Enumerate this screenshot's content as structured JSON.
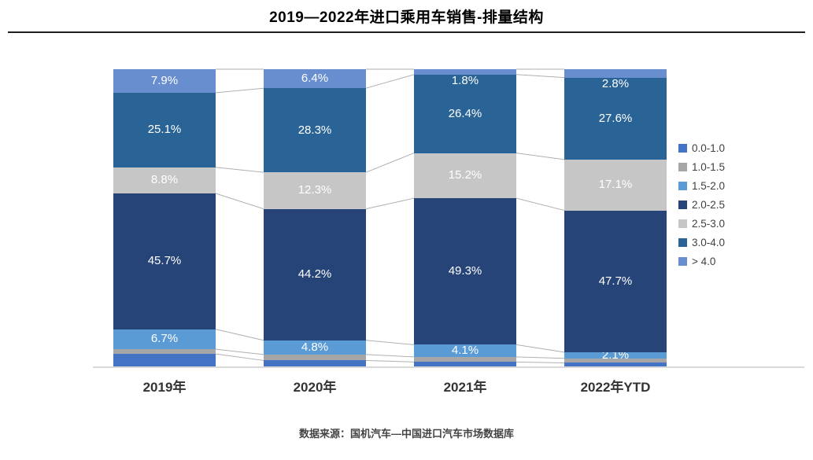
{
  "header": {
    "title": "2019—2022年进口乘用车销售-排量结构"
  },
  "footer": {
    "source": "数据来源：国机汽车—中国进口汽车市场数据库"
  },
  "chart_data": {
    "type": "bar",
    "subtype": "stacked-100-percent",
    "title": "2019—2022年进口乘用车销售-排量结构",
    "xlabel": "",
    "ylabel": "",
    "ylim": [
      0,
      100
    ],
    "grid": false,
    "connector_lines": true,
    "legend_position": "right",
    "categories": [
      "2019年",
      "2020年",
      "2021年",
      "2022年YTD"
    ],
    "series": [
      {
        "name": "0.0-1.0",
        "color": "#4472C4",
        "values": [
          4.2,
          2.0,
          1.5,
          1.2
        ],
        "labels": [
          "",
          "",
          "",
          ""
        ],
        "estimated": true
      },
      {
        "name": "1.0-1.5",
        "color": "#A6A6A6",
        "values": [
          1.6,
          2.0,
          1.7,
          1.5
        ],
        "labels": [
          "",
          "",
          "",
          ""
        ],
        "estimated": true
      },
      {
        "name": "1.5-2.0",
        "color": "#5B9BD5",
        "values": [
          6.7,
          4.8,
          4.1,
          2.1
        ],
        "labels": [
          "6.7%",
          "4.8%",
          "4.1%",
          "2.1%"
        ]
      },
      {
        "name": "2.0-2.5",
        "color": "#264478",
        "values": [
          45.7,
          44.2,
          49.3,
          47.7
        ],
        "labels": [
          "45.7%",
          "44.2%",
          "49.3%",
          "47.7%"
        ]
      },
      {
        "name": "2.5-3.0",
        "color": "#C6C6C6",
        "values": [
          8.8,
          12.3,
          15.2,
          17.1
        ],
        "labels": [
          "8.8%",
          "12.3%",
          "15.2%",
          "17.1%"
        ]
      },
      {
        "name": "3.0-4.0",
        "color": "#2A6496",
        "values": [
          25.1,
          28.3,
          26.4,
          27.6
        ],
        "labels": [
          "25.1%",
          "28.3%",
          "26.4%",
          "27.6%"
        ]
      },
      {
        "name": "> 4.0",
        "color": "#698ED0",
        "values": [
          7.9,
          6.4,
          1.8,
          2.8
        ],
        "labels": [
          "7.9%",
          "6.4%",
          "1.8%",
          "2.8%"
        ]
      }
    ],
    "legend_entries": [
      "0.0-1.0",
      "1.0-1.5",
      "1.5-2.0",
      "2.0-2.5",
      "2.5-3.0",
      "3.0-4.0",
      "> 4.0"
    ],
    "styles": {
      "connector_line_color": "#AFAFAF",
      "axis_line_color": "#D9D9D9",
      "data_label_color": "#FFFFFF"
    }
  }
}
